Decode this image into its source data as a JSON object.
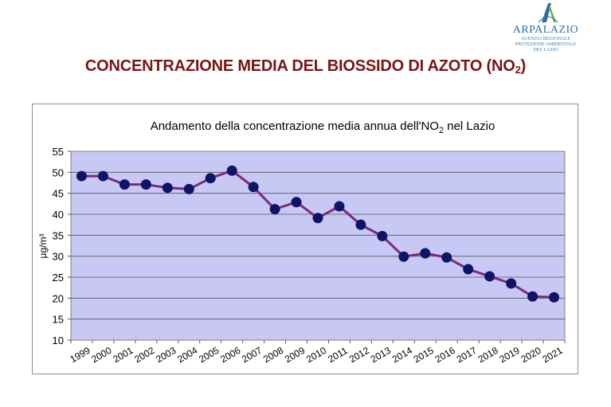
{
  "header": {
    "logo_name": "ARPALAZIO",
    "logo_sub": [
      "AGENZIA REGIONALE",
      "PROTEZIONE AMBIENTALE",
      "DEL LAZIO"
    ],
    "title_main": "CONCENTRAZIONE MEDIA DEL BIOSSIDO DI AZOTO (NO",
    "title_sub": "2",
    "title_end": ")"
  },
  "chart_data": {
    "type": "line",
    "title": "Andamento della concentrazione media annua dell'NO",
    "title_sub": "2",
    "title_end": " nel Lazio",
    "ylabel": "µg/m³",
    "xlabel": "",
    "ylim": [
      10,
      55
    ],
    "yticks": [
      10,
      15,
      20,
      25,
      30,
      35,
      40,
      45,
      50,
      55
    ],
    "grid": true,
    "colors": {
      "line": "#7b2a7b",
      "marker": "#0f1466",
      "plot_bg": "#c8c8f5"
    },
    "categories": [
      "1999",
      "2000",
      "2001",
      "2002",
      "2003",
      "2004",
      "2005",
      "2006",
      "2007",
      "2008",
      "2009",
      "2010",
      "2011",
      "2012",
      "2013",
      "2014",
      "2015",
      "2016",
      "2017",
      "2018",
      "2019",
      "2020",
      "2021"
    ],
    "values": [
      49.1,
      49.1,
      47.1,
      47.1,
      46.3,
      46.0,
      48.6,
      50.4,
      46.5,
      41.2,
      42.9,
      39.1,
      41.9,
      37.5,
      34.8,
      29.9,
      30.7,
      29.7,
      26.9,
      25.2,
      23.5,
      20.4,
      20.2
    ]
  }
}
